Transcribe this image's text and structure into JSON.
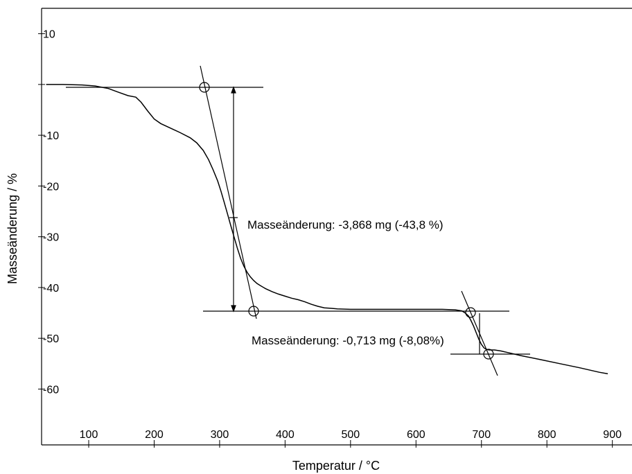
{
  "chart_data": {
    "type": "line",
    "title": "",
    "xlabel": "Temperatur / °C",
    "ylabel": "Masseänderung / %",
    "xlim": [
      28,
      930
    ],
    "ylim": [
      -71,
      15
    ],
    "x_ticks": [
      100,
      200,
      300,
      400,
      500,
      600,
      700,
      800,
      900
    ],
    "x_tick_labels": [
      "100",
      "200",
      "300",
      "400",
      "500",
      "600",
      "700",
      "800",
      "900"
    ],
    "y_ticks": [
      10,
      0,
      -10,
      -20,
      -30,
      -40,
      -50,
      -60
    ],
    "y_tick_labels": [
      "10",
      "",
      "-10",
      "-20",
      "-30",
      "-40",
      "-50",
      "-60"
    ],
    "grid": false,
    "legend": "none",
    "series": [
      {
        "color": "#000000",
        "x": [
          35,
          60,
          90,
          110,
          130,
          145,
          160,
          172,
          180,
          190,
          200,
          210,
          225,
          240,
          255,
          265,
          275,
          283,
          290,
          297,
          302,
          307,
          312,
          317,
          322,
          327,
          332,
          337,
          342,
          347,
          352,
          357,
          362,
          370,
          380,
          390,
          400,
          410,
          420,
          430,
          440,
          450,
          460,
          470,
          480,
          500,
          530,
          560,
          600,
          640,
          660,
          670,
          675,
          680,
          684,
          688,
          692,
          696,
          700,
          704,
          708,
          712,
          716,
          720,
          730,
          740,
          760,
          790,
          820,
          850,
          880,
          893
        ],
        "y": [
          0,
          0,
          -0.1,
          -0.3,
          -0.8,
          -1.5,
          -2.2,
          -2.5,
          -3.5,
          -5.2,
          -6.8,
          -7.7,
          -8.6,
          -9.5,
          -10.5,
          -11.5,
          -13,
          -14.8,
          -16.8,
          -19,
          -21,
          -23.2,
          -25.5,
          -27.8,
          -30,
          -32.2,
          -34.2,
          -35.8,
          -37,
          -37.9,
          -38.6,
          -39.2,
          -39.6,
          -40.2,
          -40.8,
          -41.3,
          -41.7,
          -42.1,
          -42.4,
          -42.8,
          -43.3,
          -43.7,
          -44,
          -44.1,
          -44.2,
          -44.3,
          -44.3,
          -44.3,
          -44.3,
          -44.3,
          -44.4,
          -44.6,
          -45,
          -45.6,
          -46.5,
          -47.6,
          -48.9,
          -50.2,
          -51.2,
          -51.9,
          -52.2,
          -52.3,
          -52.3,
          -52.3,
          -52.5,
          -52.8,
          -53.4,
          -54.2,
          -55,
          -55.8,
          -56.7,
          -57
        ]
      }
    ],
    "annotations": [
      {
        "text": "Masseänderung: -3,868 mg (-43,8 %)"
      },
      {
        "text": "Masseänderung: -0,713 mg (-8,08%)"
      }
    ]
  }
}
